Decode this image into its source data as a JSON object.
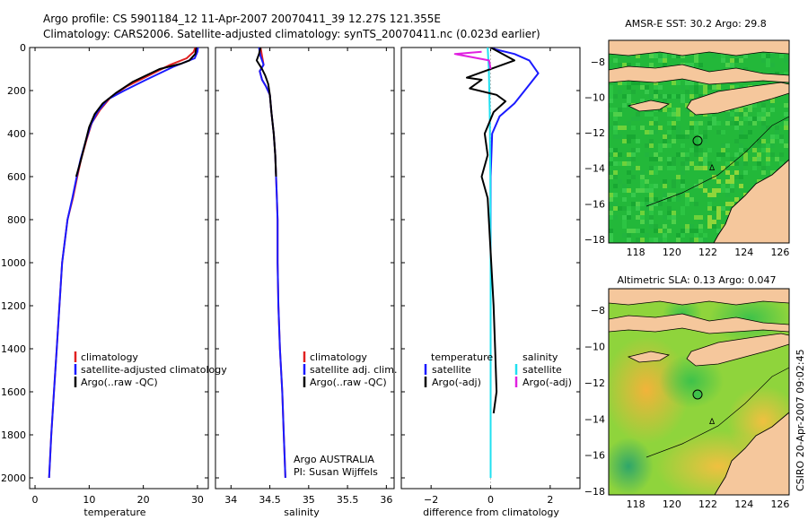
{
  "figure": {
    "title_line1": "Argo profile: CS 5901184_12 11-Apr-2007 20070411_39 12.27S 121.355E",
    "title_line2": "Climatology: CARS2006. Satellite-adjusted climatology: synTS_20070411.nc (0.023d earlier)",
    "credit": "CSIRO 20-Apr-2007 09:02:45"
  },
  "colors": {
    "climatology": "#e02020",
    "satellite": "#1a1aff",
    "argo": "#000000",
    "satellite_salinity_diff": "#20e0f0",
    "argo_salinity_diff": "#e020e0",
    "map_land": "#f5c79c"
  },
  "panels": {
    "temperature": {
      "xlabel": "temperature",
      "legend": [
        "climatology",
        "satellite-adjusted climatology",
        "Argo(..raw -QC)"
      ]
    },
    "salinity": {
      "xlabel": "salinity",
      "legend": [
        "climatology",
        "satellite adj. clim.",
        "Argo(..raw -QC)"
      ],
      "note_line1": "Argo AUSTRALIA",
      "note_line2": "PI: Susan Wijffels"
    },
    "difference": {
      "xlabel": "difference from climatology",
      "legend_temp_header": "temperature",
      "legend_sal_header": "salinity",
      "legend_temp": [
        "satellite",
        "Argo(-adj)"
      ],
      "legend_sal": [
        "satellite",
        "Argo(-adj)"
      ]
    },
    "map_sst": {
      "title": "AMSR-E SST: 30.2 Argo: 29.8"
    },
    "map_sla": {
      "title": "Altimetric SLA: 0.13 Argo: 0.047"
    }
  },
  "chart_data": [
    {
      "type": "line",
      "panel": "temperature",
      "xlabel": "temperature",
      "ylabel": "",
      "xlim": [
        -1,
        32
      ],
      "ylim": [
        2050,
        0
      ],
      "xticks": [
        0,
        10,
        20,
        30
      ],
      "yticks": [
        0,
        200,
        400,
        600,
        800,
        1000,
        1200,
        1400,
        1600,
        1800,
        2000
      ],
      "series": [
        {
          "name": "climatology",
          "color": "#e02020",
          "points": [
            [
              29.6,
              0
            ],
            [
              29.3,
              20
            ],
            [
              28,
              50
            ],
            [
              25,
              80
            ],
            [
              21,
              130
            ],
            [
              17,
              180
            ],
            [
              14,
              230
            ],
            [
              12,
              290
            ],
            [
              10.5,
              350
            ],
            [
              9.5,
              430
            ],
            [
              8.5,
              520
            ],
            [
              7.8,
              600
            ],
            [
              7,
              700
            ],
            [
              6,
              800
            ],
            [
              5.5,
              900
            ],
            [
              5,
              1000
            ],
            [
              4.5,
              1200
            ],
            [
              4,
              1400
            ],
            [
              3.5,
              1600
            ],
            [
              3,
              1800
            ],
            [
              2.6,
              2000
            ]
          ]
        },
        {
          "name": "satellite-adjusted climatology",
          "color": "#1a1aff",
          "points": [
            [
              30.1,
              0
            ],
            [
              30,
              20
            ],
            [
              29.5,
              50
            ],
            [
              25.5,
              90
            ],
            [
              20.5,
              150
            ],
            [
              16.5,
              200
            ],
            [
              13.5,
              240
            ],
            [
              11.5,
              300
            ],
            [
              10.3,
              360
            ],
            [
              9.3,
              440
            ],
            [
              8.4,
              520
            ],
            [
              7.7,
              600
            ],
            [
              6.9,
              700
            ],
            [
              6,
              800
            ],
            [
              5.5,
              900
            ],
            [
              5,
              1000
            ],
            [
              4.5,
              1200
            ],
            [
              4,
              1400
            ],
            [
              3.5,
              1600
            ],
            [
              3,
              1800
            ],
            [
              2.6,
              2000
            ]
          ]
        },
        {
          "name": "Argo(..raw -QC)",
          "color": "#000000",
          "points": [
            [
              29.8,
              0
            ],
            [
              29.6,
              30
            ],
            [
              28.5,
              60
            ],
            [
              27,
              75
            ],
            [
              23,
              100
            ],
            [
              18,
              160
            ],
            [
              15,
              210
            ],
            [
              12.5,
              260
            ],
            [
              11,
              310
            ],
            [
              10,
              370
            ],
            [
              9.3,
              440
            ],
            [
              8.5,
              520
            ],
            [
              7.6,
              600
            ]
          ]
        }
      ]
    },
    {
      "type": "line",
      "panel": "salinity",
      "xlabel": "salinity",
      "ylabel": "",
      "xlim": [
        33.8,
        36.1
      ],
      "ylim": [
        2050,
        0
      ],
      "xticks": [
        34,
        34.5,
        35,
        35.5,
        36
      ],
      "xticklabels": [
        "34",
        "34.5",
        "35",
        "35.5",
        "36"
      ],
      "series": [
        {
          "name": "climatology",
          "color": "#e02020",
          "points": [
            [
              34.38,
              0
            ],
            [
              34.4,
              40
            ],
            [
              34.42,
              80
            ],
            [
              34.37,
              110
            ],
            [
              34.4,
              150
            ],
            [
              34.45,
              180
            ],
            [
              34.5,
              220
            ],
            [
              34.52,
              300
            ],
            [
              34.55,
              400
            ],
            [
              34.57,
              500
            ],
            [
              34.58,
              600
            ],
            [
              34.59,
              700
            ],
            [
              34.6,
              800
            ],
            [
              34.6,
              1000
            ],
            [
              34.61,
              1200
            ],
            [
              34.63,
              1400
            ],
            [
              34.66,
              1600
            ],
            [
              34.68,
              1800
            ],
            [
              34.7,
              2000
            ]
          ]
        },
        {
          "name": "satellite adj. clim.",
          "color": "#1a1aff",
          "points": [
            [
              34.36,
              0
            ],
            [
              34.38,
              40
            ],
            [
              34.42,
              80
            ],
            [
              34.37,
              110
            ],
            [
              34.4,
              150
            ],
            [
              34.45,
              180
            ],
            [
              34.5,
              220
            ],
            [
              34.52,
              300
            ],
            [
              34.55,
              400
            ],
            [
              34.57,
              500
            ],
            [
              34.58,
              600
            ],
            [
              34.59,
              700
            ],
            [
              34.6,
              800
            ],
            [
              34.6,
              1000
            ],
            [
              34.61,
              1200
            ],
            [
              34.63,
              1400
            ],
            [
              34.66,
              1600
            ],
            [
              34.68,
              1800
            ],
            [
              34.7,
              2000
            ]
          ]
        },
        {
          "name": "Argo(..raw -QC)",
          "color": "#000000",
          "points": [
            [
              34.38,
              0
            ],
            [
              34.36,
              30
            ],
            [
              34.33,
              60
            ],
            [
              34.4,
              100
            ],
            [
              34.44,
              130
            ],
            [
              34.48,
              170
            ],
            [
              34.5,
              220
            ],
            [
              34.52,
              300
            ],
            [
              34.55,
              400
            ],
            [
              34.57,
              500
            ],
            [
              34.58,
              600
            ]
          ]
        }
      ]
    },
    {
      "type": "line",
      "panel": "difference",
      "xlabel": "difference from climatology",
      "ylabel": "",
      "xlim": [
        -3,
        3
      ],
      "ylim": [
        2050,
        0
      ],
      "xticks": [
        -2,
        0,
        2
      ],
      "series": [
        {
          "name": "temperature satellite",
          "color": "#1a1aff",
          "points": [
            [
              0,
              0
            ],
            [
              0.2,
              10
            ],
            [
              0.8,
              30
            ],
            [
              1.3,
              60
            ],
            [
              1.6,
              120
            ],
            [
              1.2,
              190
            ],
            [
              0.8,
              260
            ],
            [
              0.3,
              320
            ],
            [
              0.05,
              400
            ],
            [
              0,
              600
            ],
            [
              0,
              1000
            ],
            [
              0,
              1400
            ],
            [
              0,
              2000
            ]
          ]
        },
        {
          "name": "salinity satellite",
          "color": "#20e0f0",
          "points": [
            [
              -0.1,
              0
            ],
            [
              -0.06,
              100
            ],
            [
              -0.03,
              300
            ],
            [
              -0.01,
              600
            ],
            [
              0,
              1000
            ],
            [
              0,
              1500
            ],
            [
              0,
              2000
            ]
          ]
        },
        {
          "name": "temperature Argo(-adj)",
          "color": "#000000",
          "points": [
            [
              0,
              0
            ],
            [
              0.8,
              60
            ],
            [
              -0.8,
              140
            ],
            [
              -0.3,
              150
            ],
            [
              -0.7,
              190
            ],
            [
              0.2,
              220
            ],
            [
              0.5,
              250
            ],
            [
              0.1,
              300
            ],
            [
              -0.2,
              400
            ],
            [
              -0.1,
              500
            ],
            [
              -0.3,
              600
            ],
            [
              -0.1,
              700
            ],
            [
              0.1,
              1200
            ],
            [
              0.15,
              1400
            ],
            [
              0.2,
              1600
            ],
            [
              0.1,
              1700
            ]
          ]
        },
        {
          "name": "salinity Argo(-adj)",
          "color": "#e020e0",
          "points": [
            [
              -0.3,
              20
            ],
            [
              -1.2,
              30
            ],
            [
              -0.05,
              60
            ],
            [
              0,
              100
            ]
          ]
        }
      ]
    },
    {
      "type": "heatmap",
      "panel": "map_sst",
      "title": "AMSR-E SST: 30.2 Argo: 29.8",
      "xlim": [
        116.5,
        126.5
      ],
      "ylim": [
        -18.2,
        -6.8
      ],
      "xticks": [
        118,
        120,
        122,
        124,
        126
      ],
      "yticks": [
        -8,
        -10,
        -12,
        -14,
        -16,
        -18
      ],
      "argo_position": [
        121.355,
        -12.27
      ]
    },
    {
      "type": "heatmap",
      "panel": "map_sla",
      "title": "Altimetric SLA: 0.13 Argo: 0.047",
      "xlim": [
        116.5,
        126.5
      ],
      "ylim": [
        -18.2,
        -6.8
      ],
      "xticks": [
        118,
        120,
        122,
        124,
        126
      ],
      "yticks": [
        -8,
        -10,
        -12,
        -14,
        -16,
        -18
      ],
      "argo_position": [
        121.355,
        -12.27
      ]
    }
  ]
}
